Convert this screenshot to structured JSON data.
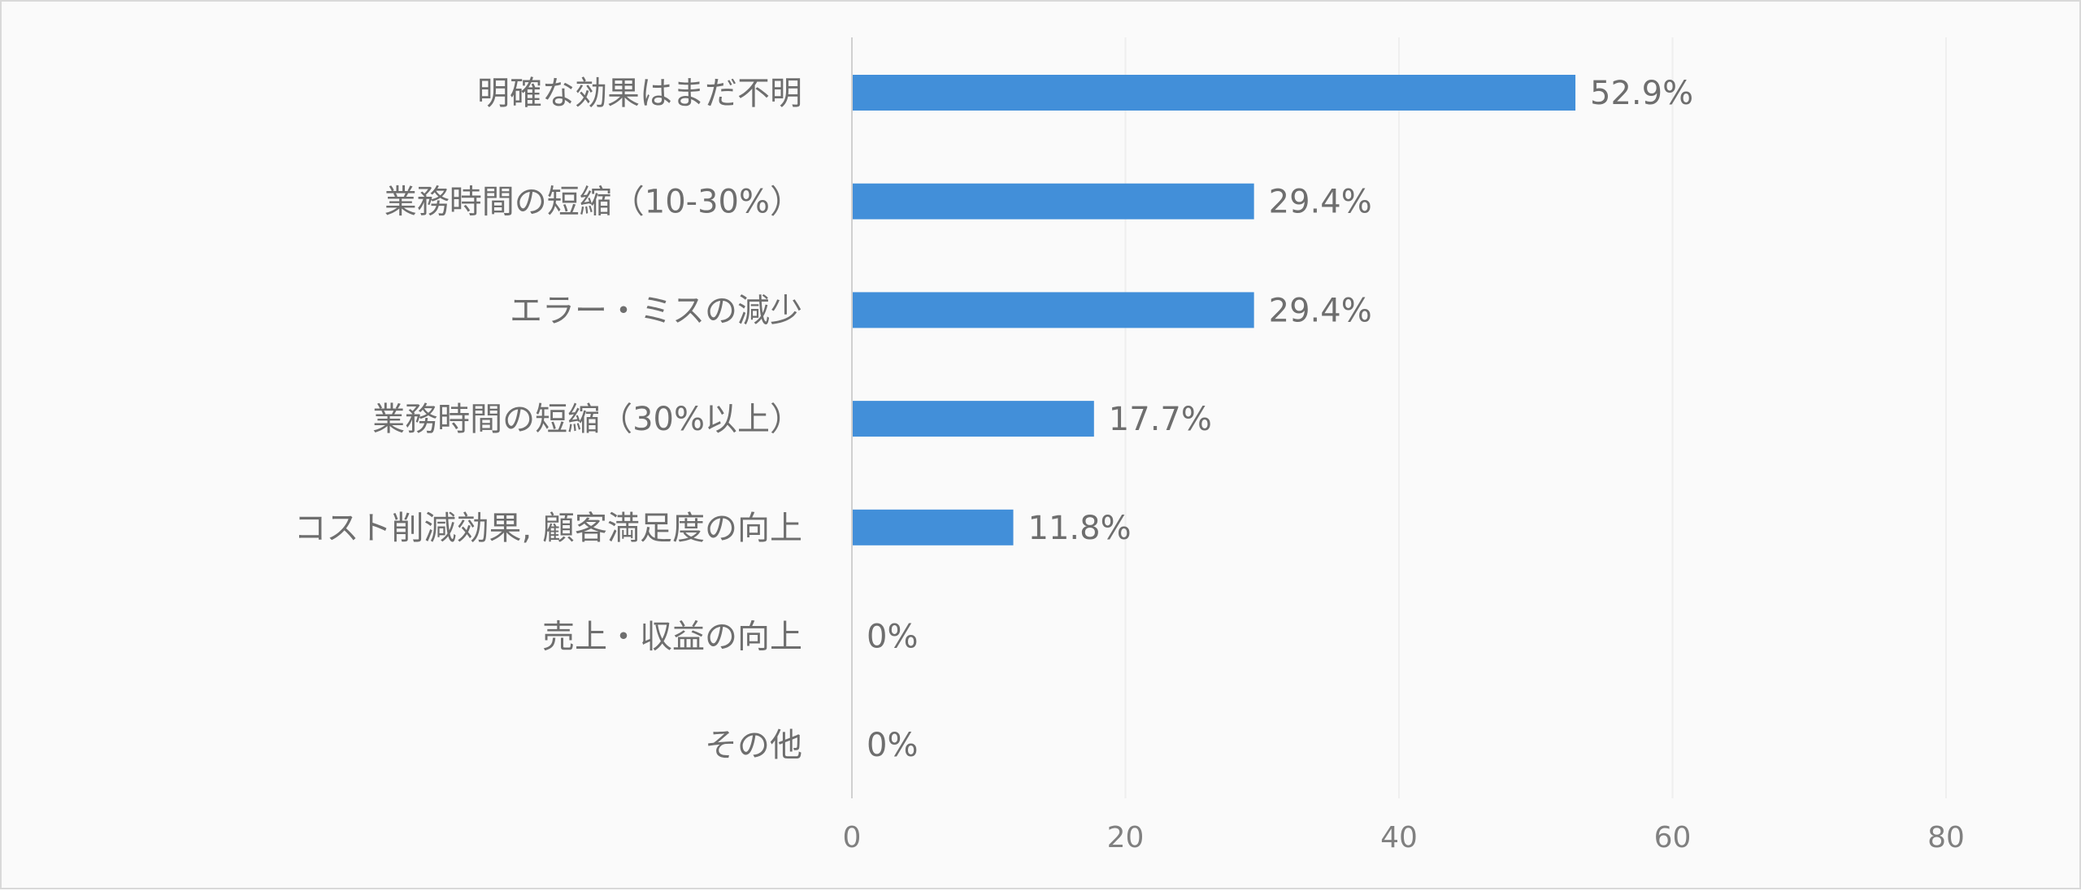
{
  "chart_data": {
    "type": "bar",
    "orientation": "horizontal",
    "categories": [
      "明確な効果はまだ不明",
      "業務時間の短縮（10-30%）",
      "エラー・ミスの減少",
      "業務時間の短縮（30%以上）",
      "コスト削減効果, 顧客満足度の向上",
      "売上・収益の向上",
      "その他"
    ],
    "values": [
      52.9,
      29.4,
      29.4,
      17.7,
      11.8,
      0,
      0
    ],
    "data_labels": [
      "52.9%",
      "29.4%",
      "29.4%",
      "17.7%",
      "11.8%",
      "0%",
      "0%"
    ],
    "xlim": [
      0,
      80
    ],
    "xticks": [
      "0",
      "20",
      "40",
      "60",
      "80"
    ],
    "grid": true,
    "legend": "none",
    "colors": {
      "bar": "#428fd9",
      "grid": "#efefef",
      "axis": "#d0d0d0",
      "text": "#6e6e6e"
    }
  }
}
